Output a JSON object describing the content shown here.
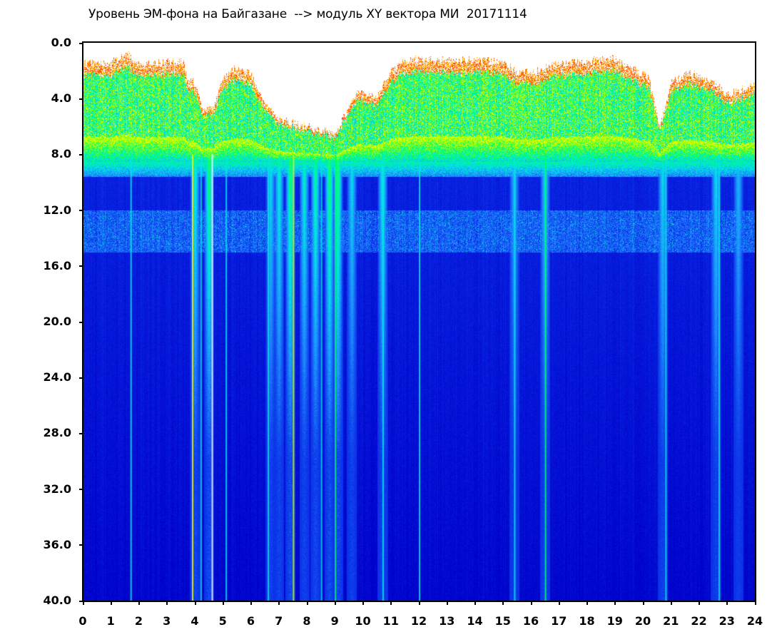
{
  "chart_data": {
    "type": "heatmap",
    "title": "Уровень ЭМ-фона на Байгазане  --> модуль XY вектора МИ  20171114",
    "xlabel": "",
    "ylabel": "",
    "x_range": [
      0,
      24
    ],
    "y_range": [
      0,
      40
    ],
    "y_inverted": true,
    "x_ticks": [
      "0",
      "1",
      "2",
      "3",
      "4",
      "5",
      "6",
      "7",
      "8",
      "9",
      "10",
      "11",
      "12",
      "13",
      "14",
      "15",
      "16",
      "17",
      "18",
      "19",
      "20",
      "21",
      "22",
      "23",
      "24"
    ],
    "y_ticks": [
      "0.0",
      "4.0",
      "8.0",
      "12.0",
      "16.0",
      "20.0",
      "24.0",
      "28.0",
      "32.0",
      "36.0",
      "40.0"
    ],
    "colormap": [
      "#0000c8",
      "#0a2ae6",
      "#1e8cff",
      "#00e6e6",
      "#00ff64",
      "#c8ff00",
      "#ffff00",
      "#ff0000",
      "#ffffff"
    ],
    "grid": false,
    "high_level_band_upper_edge_y": [
      {
        "x": 0.0,
        "y": 1.5
      },
      {
        "x": 1.0,
        "y": 1.4
      },
      {
        "x": 1.6,
        "y": 0.8
      },
      {
        "x": 2.0,
        "y": 1.6
      },
      {
        "x": 3.0,
        "y": 1.4
      },
      {
        "x": 3.6,
        "y": 1.3
      },
      {
        "x": 3.7,
        "y": 2.6
      },
      {
        "x": 4.0,
        "y": 2.9
      },
      {
        "x": 4.3,
        "y": 5.0
      },
      {
        "x": 4.7,
        "y": 4.5
      },
      {
        "x": 5.0,
        "y": 2.5
      },
      {
        "x": 5.4,
        "y": 1.9
      },
      {
        "x": 6.0,
        "y": 2.2
      },
      {
        "x": 6.5,
        "y": 4.5
      },
      {
        "x": 7.0,
        "y": 5.5
      },
      {
        "x": 8.0,
        "y": 6.0
      },
      {
        "x": 9.0,
        "y": 6.5
      },
      {
        "x": 9.8,
        "y": 3.5
      },
      {
        "x": 10.5,
        "y": 4.0
      },
      {
        "x": 11.0,
        "y": 2.0
      },
      {
        "x": 11.6,
        "y": 1.2
      },
      {
        "x": 12.2,
        "y": 1.2
      },
      {
        "x": 15.0,
        "y": 1.3
      },
      {
        "x": 15.5,
        "y": 2.2
      },
      {
        "x": 16.3,
        "y": 2.0
      },
      {
        "x": 16.8,
        "y": 1.6
      },
      {
        "x": 18.0,
        "y": 1.3
      },
      {
        "x": 19.0,
        "y": 1.1
      },
      {
        "x": 19.5,
        "y": 1.8
      },
      {
        "x": 20.2,
        "y": 2.4
      },
      {
        "x": 20.6,
        "y": 6.0
      },
      {
        "x": 21.0,
        "y": 2.8
      },
      {
        "x": 21.6,
        "y": 2.1
      },
      {
        "x": 22.5,
        "y": 2.8
      },
      {
        "x": 23.0,
        "y": 3.7
      },
      {
        "x": 24.0,
        "y": 3.0
      }
    ],
    "high_level_band_lower_edge_y": 8.0,
    "secondary_band_y": [
      12.0,
      15.0
    ],
    "dip_intervals_h": [
      {
        "x": 4.0,
        "level": 0.6
      },
      {
        "x": 4.5,
        "level": 0.8
      },
      {
        "x": 6.7,
        "level": 0.5
      },
      {
        "x": 7.0,
        "level": 0.6
      },
      {
        "x": 7.4,
        "level": 0.8
      },
      {
        "x": 7.9,
        "level": 0.6
      },
      {
        "x": 8.3,
        "level": 0.7
      },
      {
        "x": 8.8,
        "level": 0.8
      },
      {
        "x": 9.1,
        "level": 0.8
      },
      {
        "x": 9.6,
        "level": 0.5
      },
      {
        "x": 10.7,
        "level": 0.6
      },
      {
        "x": 15.4,
        "level": 0.4
      },
      {
        "x": 16.5,
        "level": 0.5
      },
      {
        "x": 20.7,
        "level": 0.5
      },
      {
        "x": 22.6,
        "level": 0.5
      },
      {
        "x": 23.4,
        "level": 0.4
      }
    ],
    "vertical_streaks_h": [
      {
        "x": 1.7,
        "color": "#00e6e6"
      },
      {
        "x": 3.9,
        "color": "#ffff00"
      },
      {
        "x": 4.2,
        "color": "#00e6e6"
      },
      {
        "x": 4.6,
        "color": "#ffffff"
      },
      {
        "x": 5.1,
        "color": "#00e6e6"
      },
      {
        "x": 6.6,
        "color": "#00e6e6"
      },
      {
        "x": 7.5,
        "color": "#c8ff00"
      },
      {
        "x": 8.5,
        "color": "#00e6e6"
      },
      {
        "x": 9.0,
        "color": "#00ff64"
      },
      {
        "x": 10.7,
        "color": "#00e6e6"
      },
      {
        "x": 12.0,
        "color": "#00e6e6"
      },
      {
        "x": 15.4,
        "color": "#00e6e6"
      },
      {
        "x": 16.5,
        "color": "#00ff64"
      },
      {
        "x": 20.8,
        "color": "#00e6e6"
      },
      {
        "x": 22.7,
        "color": "#00e6e6"
      }
    ]
  }
}
